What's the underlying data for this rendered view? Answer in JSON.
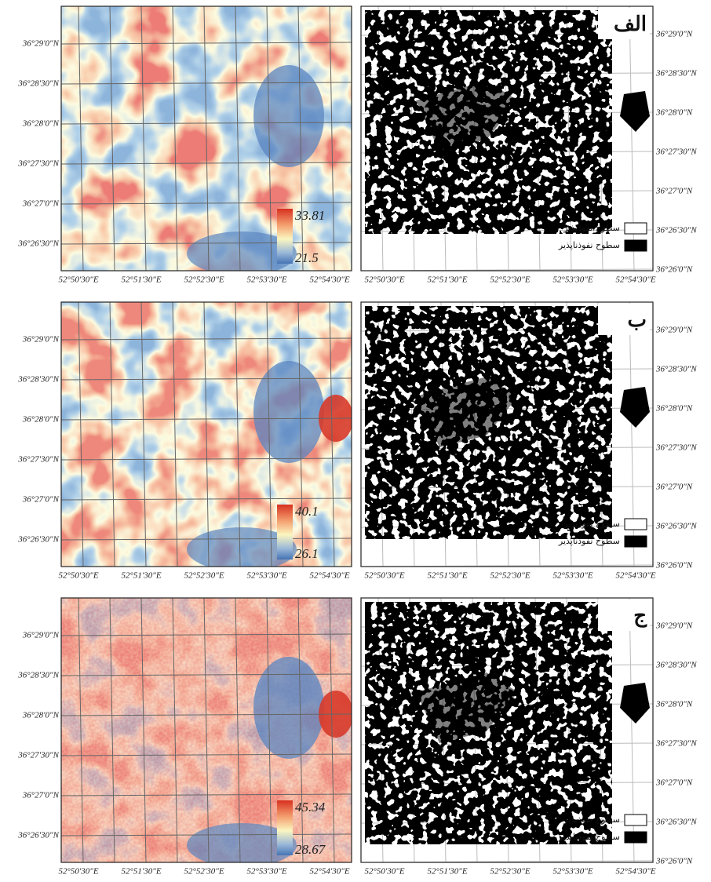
{
  "rows": [
    {
      "label": "الف",
      "legend": {
        "max": 33.81,
        "min": 21.5
      }
    },
    {
      "label": "ب",
      "legend": {
        "max": 40.1,
        "min": 26.1
      }
    },
    {
      "label": "ج",
      "legend": {
        "max": 45.34,
        "min": 28.67
      }
    }
  ],
  "legend_items": [
    "سطوح نفوذپذیر",
    "سطوح نفوذناپذیر"
  ],
  "x_labels": [
    "52°50'30\"E",
    "52°51'30\"E",
    "52°52'30\"E",
    "52°53'30\"E",
    "52°54'30\"E"
  ],
  "y_labels_left": [
    "36°29'0\"N",
    "36°28'30\"N",
    "36°28'0\"N",
    "36°27'30\"N",
    "36°27'0\"N",
    "36°26'30\"N"
  ],
  "y_labels_right": [
    "36°29'0\"N",
    "36°28'30\"N",
    "36°28'0\"N",
    "36°27'30\"N",
    "36°27'0\"N",
    "36°26'30\"N",
    "36°26'0\"N"
  ]
}
